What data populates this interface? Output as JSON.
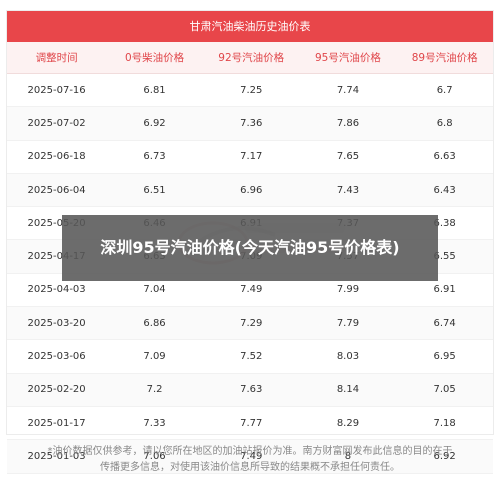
{
  "table": {
    "title": "甘肃汽油柴油历史油价表",
    "headers": [
      "调整时间",
      "0号柴油价格",
      "92号汽油价格",
      "95号汽油价格",
      "89号汽油价格"
    ],
    "rows": [
      [
        "2025-07-16",
        "6.81",
        "7.25",
        "7.74",
        "6.7"
      ],
      [
        "2025-07-02",
        "6.92",
        "7.36",
        "7.86",
        "6.8"
      ],
      [
        "2025-06-18",
        "6.73",
        "7.17",
        "7.65",
        "6.63"
      ],
      [
        "2025-06-04",
        "6.51",
        "6.96",
        "7.43",
        "6.43"
      ],
      [
        "2025-05-20",
        "6.46",
        "6.91",
        "7.37",
        "6.38"
      ],
      [
        "2025-04-17",
        "6.63",
        "7.09",
        "7.57",
        "6.55"
      ],
      [
        "2025-04-03",
        "7.04",
        "7.49",
        "7.99",
        "6.91"
      ],
      [
        "2025-03-20",
        "6.86",
        "7.29",
        "7.79",
        "6.74"
      ],
      [
        "2025-03-06",
        "7.09",
        "7.52",
        "8.03",
        "6.95"
      ],
      [
        "2025-02-20",
        "7.2",
        "7.63",
        "8.14",
        "7.05"
      ],
      [
        "2025-01-17",
        "7.33",
        "7.77",
        "8.29",
        "7.18"
      ],
      [
        "2025-01-03",
        "7.06",
        "7.49",
        "8",
        "6.92"
      ]
    ]
  },
  "overlay": {
    "title": "深圳95号汽油价格(今天汽油95号价格表)"
  },
  "footnote": {
    "line1": "*油价数据仅供参考，请以您所在地区的加油站报价为准。南方财富网发布此信息的目的在于",
    "line2": "传播更多信息，对使用该油价信息所导致的结果概不承担任何责任。"
  },
  "colors": {
    "title_bg": "#e8464a",
    "header_text": "#e0464a",
    "header_bg": "#fdf2f2",
    "overlay_bg": "#585858"
  }
}
